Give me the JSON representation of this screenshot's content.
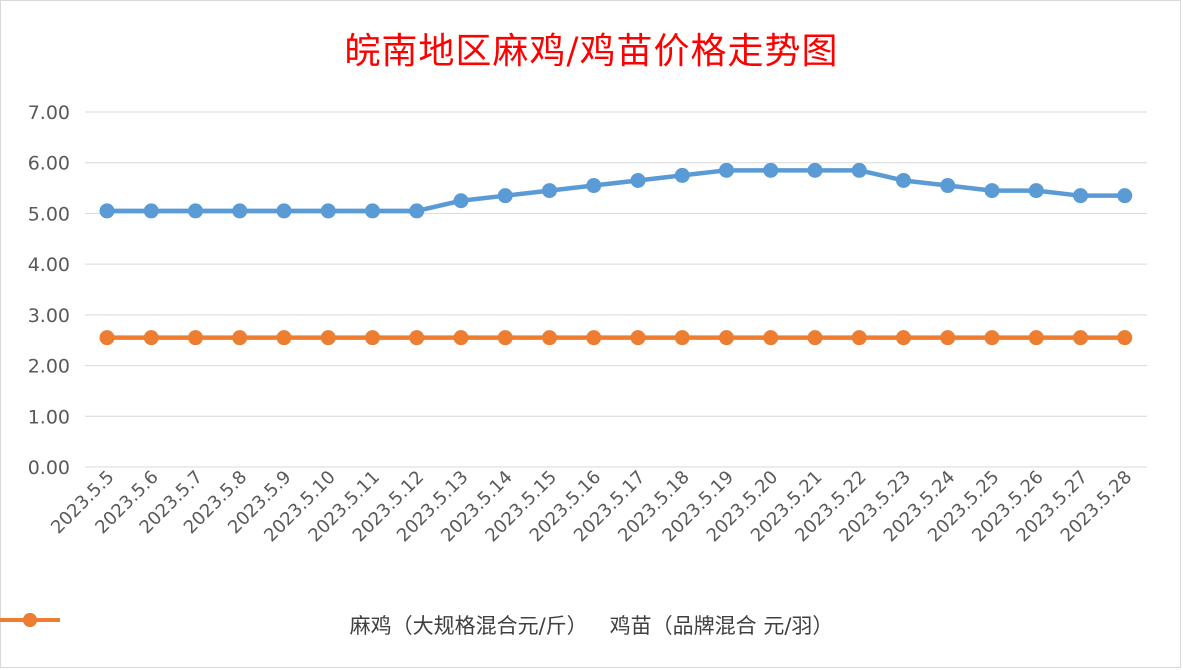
{
  "chart_data": {
    "type": "line",
    "title": "皖南地区麻鸡/鸡苗价格走势图",
    "categories": [
      "2023.5.5",
      "2023.5.6",
      "2023.5.7",
      "2023.5.8",
      "2023.5.9",
      "2023.5.10",
      "2023.5.11",
      "2023.5.12",
      "2023.5.13",
      "2023.5.14",
      "2023.5.15",
      "2023.5.16",
      "2023.5.17",
      "2023.5.18",
      "2023.5.19",
      "2023.5.20",
      "2023.5.21",
      "2023.5.22",
      "2023.5.23",
      "2023.5.24",
      "2023.5.25",
      "2023.5.26",
      "2023.5.27",
      "2023.5.28"
    ],
    "series": [
      {
        "name": "麻鸡（大规格混合元/斤）",
        "color": "#5b9bd5",
        "values": [
          5.05,
          5.05,
          5.05,
          5.05,
          5.05,
          5.05,
          5.05,
          5.05,
          5.25,
          5.35,
          5.45,
          5.55,
          5.65,
          5.75,
          5.85,
          5.85,
          5.85,
          5.85,
          5.65,
          5.55,
          5.45,
          5.45,
          5.35,
          5.35
        ]
      },
      {
        "name": "鸡苗（品牌混合 元/羽）",
        "color": "#ed7d31",
        "values": [
          2.55,
          2.55,
          2.55,
          2.55,
          2.55,
          2.55,
          2.55,
          2.55,
          2.55,
          2.55,
          2.55,
          2.55,
          2.55,
          2.55,
          2.55,
          2.55,
          2.55,
          2.55,
          2.55,
          2.55,
          2.55,
          2.55,
          2.55,
          2.55
        ]
      }
    ],
    "yticks": [
      "0.00",
      "1.00",
      "2.00",
      "3.00",
      "4.00",
      "5.00",
      "6.00",
      "7.00"
    ],
    "ylim": [
      0,
      7
    ],
    "grid": true,
    "legend_position": "bottom"
  }
}
